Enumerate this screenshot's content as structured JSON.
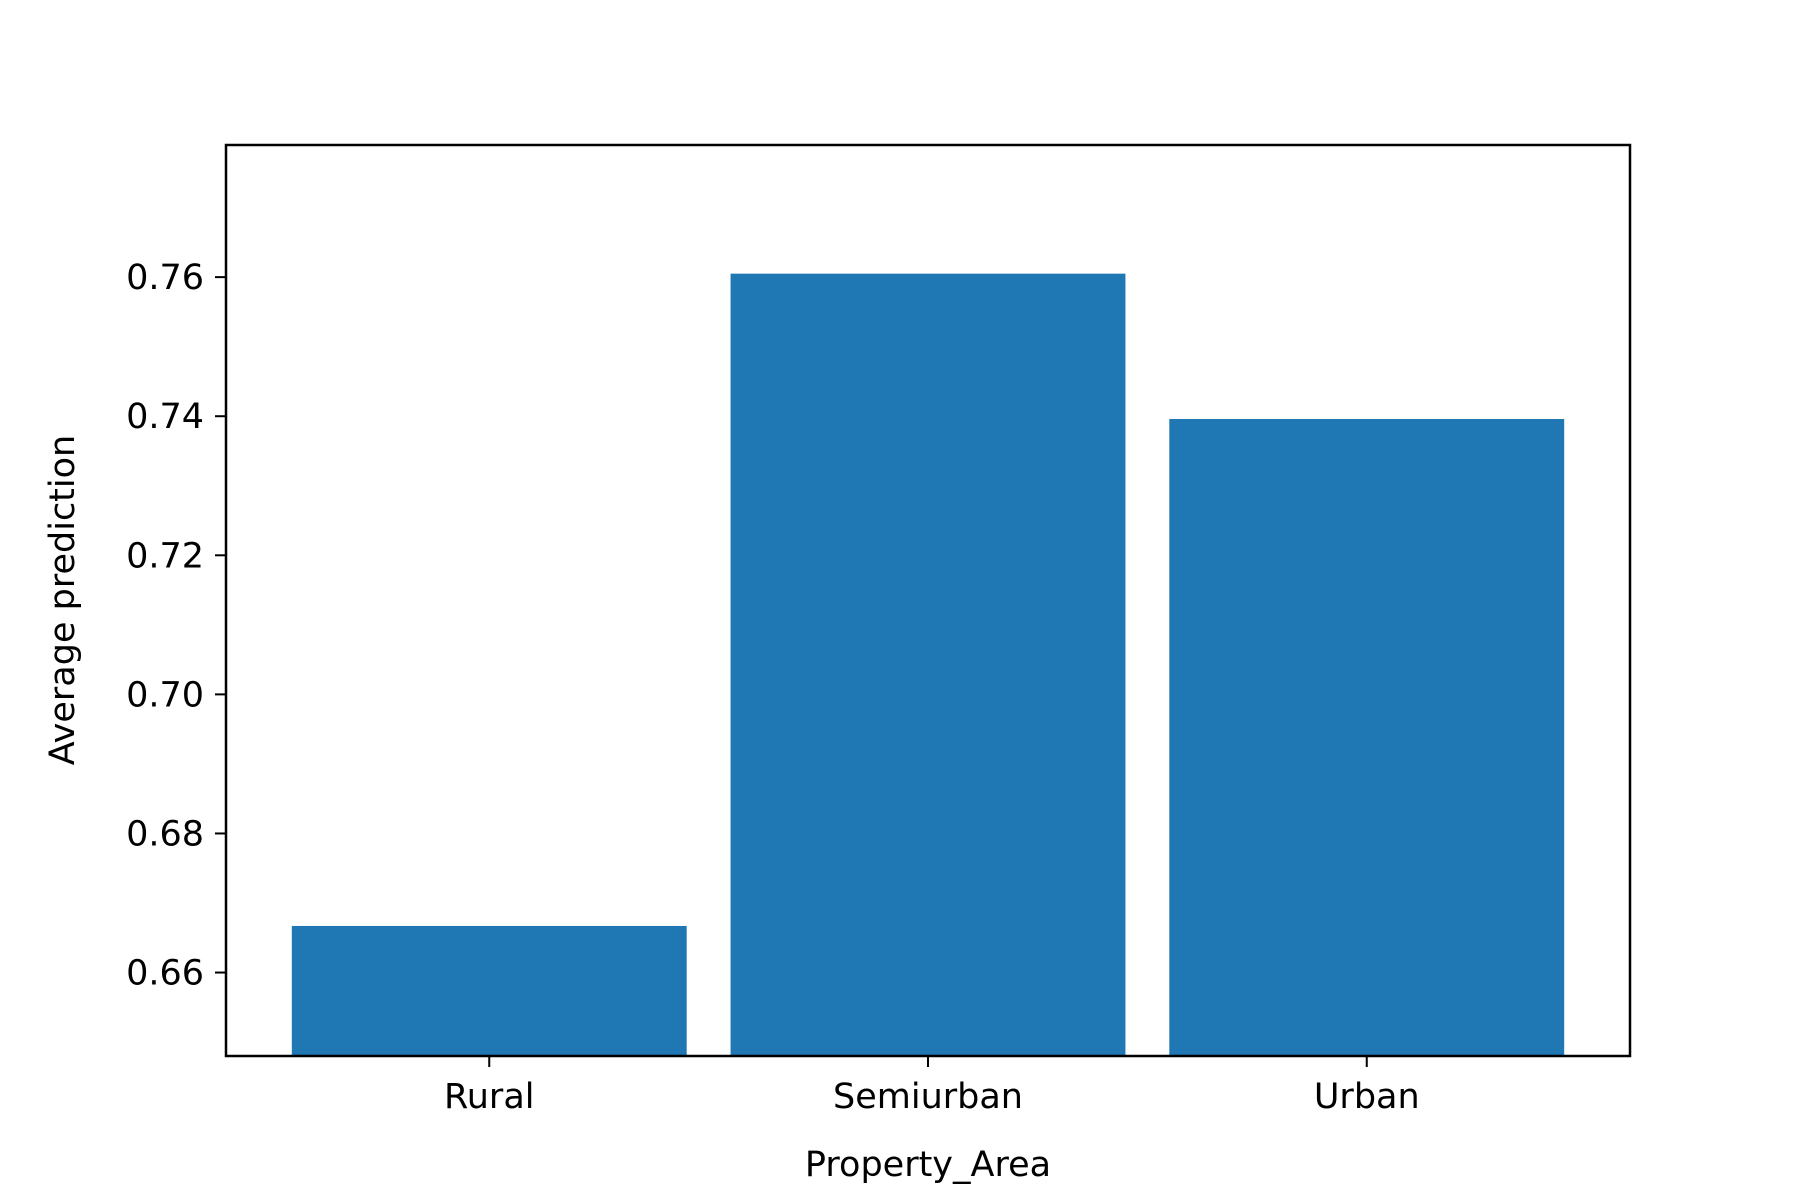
{
  "chart_data": {
    "type": "bar",
    "title": "",
    "xlabel": "Property_Area",
    "ylabel": "Average prediction",
    "categories": [
      "Rural",
      "Semiurban",
      "Urban"
    ],
    "values": [
      0.6667,
      0.7605,
      0.7396
    ],
    "ylim": [
      0.648,
      0.779
    ],
    "yticks": [
      0.66,
      0.68,
      0.7,
      0.72,
      0.74,
      0.76
    ],
    "ytick_labels": [
      "0.66",
      "0.68",
      "0.70",
      "0.72",
      "0.74",
      "0.76"
    ],
    "bar_color": "#1f77b4",
    "grid": false,
    "legend": "none"
  }
}
